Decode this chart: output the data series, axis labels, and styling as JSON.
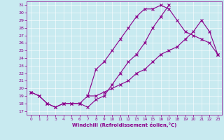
{
  "xlabel": "Windchill (Refroidissement éolien,°C)",
  "xlim": [
    -0.5,
    23.5
  ],
  "ylim": [
    16.5,
    31.5
  ],
  "xticks": [
    0,
    1,
    2,
    3,
    4,
    5,
    6,
    7,
    8,
    9,
    10,
    11,
    12,
    13,
    14,
    15,
    16,
    17,
    18,
    19,
    20,
    21,
    22,
    23
  ],
  "yticks": [
    17,
    18,
    19,
    20,
    21,
    22,
    23,
    24,
    25,
    26,
    27,
    28,
    29,
    30,
    31
  ],
  "bg_color": "#c8eaf0",
  "line_color": "#8b008b",
  "line1_x": [
    0,
    1,
    2,
    3,
    4,
    5,
    6,
    7,
    8,
    9,
    10,
    11,
    12,
    13,
    14,
    15,
    16,
    17
  ],
  "line1_y": [
    19.5,
    19.0,
    18.0,
    17.5,
    18.0,
    18.0,
    18.0,
    17.5,
    18.5,
    19.0,
    20.5,
    22.0,
    23.5,
    24.5,
    26.0,
    28.0,
    29.5,
    31.0
  ],
  "line2_x": [
    0,
    1,
    2,
    3,
    4,
    5,
    6,
    7,
    8,
    9,
    10,
    11,
    12,
    13,
    14,
    15,
    16,
    17,
    18,
    19,
    20,
    21,
    22,
    23
  ],
  "line2_y": [
    19.5,
    19.0,
    18.0,
    17.5,
    18.0,
    18.0,
    18.0,
    19.0,
    19.0,
    19.5,
    20.0,
    20.5,
    21.0,
    22.0,
    22.5,
    23.5,
    24.5,
    25.0,
    25.5,
    26.5,
    27.5,
    29.0,
    27.5,
    24.5
  ],
  "line3_x": [
    7,
    8,
    9,
    10,
    11,
    12,
    13,
    14,
    15,
    16,
    17,
    18,
    19,
    20,
    21,
    22,
    23
  ],
  "line3_y": [
    19.0,
    22.5,
    23.5,
    25.0,
    26.5,
    28.0,
    29.5,
    30.5,
    30.5,
    31.0,
    30.5,
    29.0,
    27.5,
    27.0,
    26.5,
    26.0,
    24.5
  ]
}
